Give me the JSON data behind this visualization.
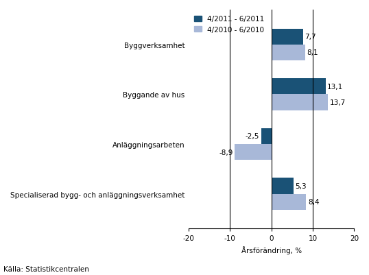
{
  "categories": [
    "Byggverksamhet",
    "Byggande av hus",
    "Anläggningsarbeten",
    "Specialiserad bygg- och anläggningsverksamhet"
  ],
  "series": [
    {
      "label": "4/2011 - 6/2011",
      "values": [
        7.7,
        13.1,
        -2.5,
        5.3
      ],
      "color": "#1a5276"
    },
    {
      "label": "4/2010 - 6/2010",
      "values": [
        8.1,
        13.7,
        -8.9,
        8.4
      ],
      "color": "#a8b8d8"
    }
  ],
  "xlim": [
    -20,
    20
  ],
  "xticks": [
    -20,
    -10,
    0,
    10,
    20
  ],
  "xlabel": "Årsförändring, %",
  "source": "Källa: Statistikcentralen",
  "bar_height": 0.32,
  "value_fontsize": 7.5,
  "legend_fontsize": 7.5,
  "tick_fontsize": 7.5,
  "xlabel_fontsize": 7.5,
  "source_fontsize": 7.5,
  "category_fontsize": 7.5
}
